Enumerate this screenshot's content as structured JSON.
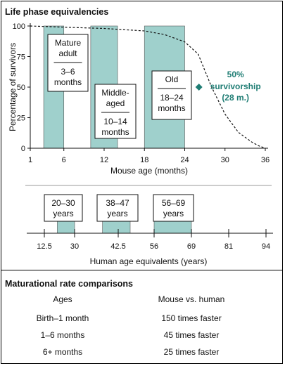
{
  "chart_data": {
    "type": "line",
    "title": "Life phase equivalencies",
    "ylabel": "Percentage of survivors",
    "xlabel": "Mouse age (months)",
    "yticks": [
      0,
      25,
      50,
      75,
      100
    ],
    "xticks": [
      1,
      6,
      12,
      18,
      24,
      30,
      36
    ],
    "xlim": [
      1,
      36
    ],
    "ylim": [
      0,
      100
    ],
    "survival_curve": {
      "x": [
        1,
        6,
        12,
        18,
        21,
        24,
        26,
        28,
        30,
        32,
        34,
        35,
        36
      ],
      "y": [
        100,
        99,
        98,
        96,
        93,
        87,
        77,
        50,
        28,
        13,
        5,
        2,
        0
      ]
    },
    "annotation": {
      "label": "50% survivorship (28 m.)",
      "line1": "50%",
      "line2": "survivorship",
      "line3": "(28 m.)",
      "x": 28,
      "y": 50,
      "color": "#1f7d74"
    },
    "phases": [
      {
        "lines": [
          "Mature",
          "adult"
        ],
        "range": "3–6",
        "unit": "months",
        "start": 3,
        "end": 6,
        "human": {
          "start": 20,
          "end": 30,
          "label": "20–30",
          "unit": "years"
        }
      },
      {
        "lines": [
          "Middle-",
          "aged"
        ],
        "range": "10–14",
        "unit": "months",
        "start": 10,
        "end": 14,
        "human": {
          "start": 38,
          "end": 47,
          "label": "38–47",
          "unit": "years"
        }
      },
      {
        "lines": [
          "Old"
        ],
        "range": "18–24",
        "unit": "months",
        "start": 18,
        "end": 24,
        "human": {
          "start": 56,
          "end": 69,
          "label": "56–69",
          "unit": "years"
        }
      }
    ],
    "human_axis": {
      "xlabel": "Human age equivalents (years)",
      "ticks": [
        12.5,
        30,
        42.5,
        56,
        69,
        81,
        94
      ],
      "tick_labels": [
        "12.5",
        "30",
        "42.5",
        "56",
        "69",
        "81",
        "94"
      ]
    },
    "colors": {
      "band": "#9fd0cc",
      "curve": "#111111",
      "accent": "#1f7d74"
    }
  },
  "rates": {
    "title": "Maturational rate comparisons",
    "headers": [
      "Ages",
      "Mouse vs. human"
    ],
    "rows": [
      [
        "Birth–1 month",
        "150 times faster"
      ],
      [
        "1–6 months",
        "45 times faster"
      ],
      [
        "6+ months",
        "25 times faster"
      ]
    ]
  }
}
